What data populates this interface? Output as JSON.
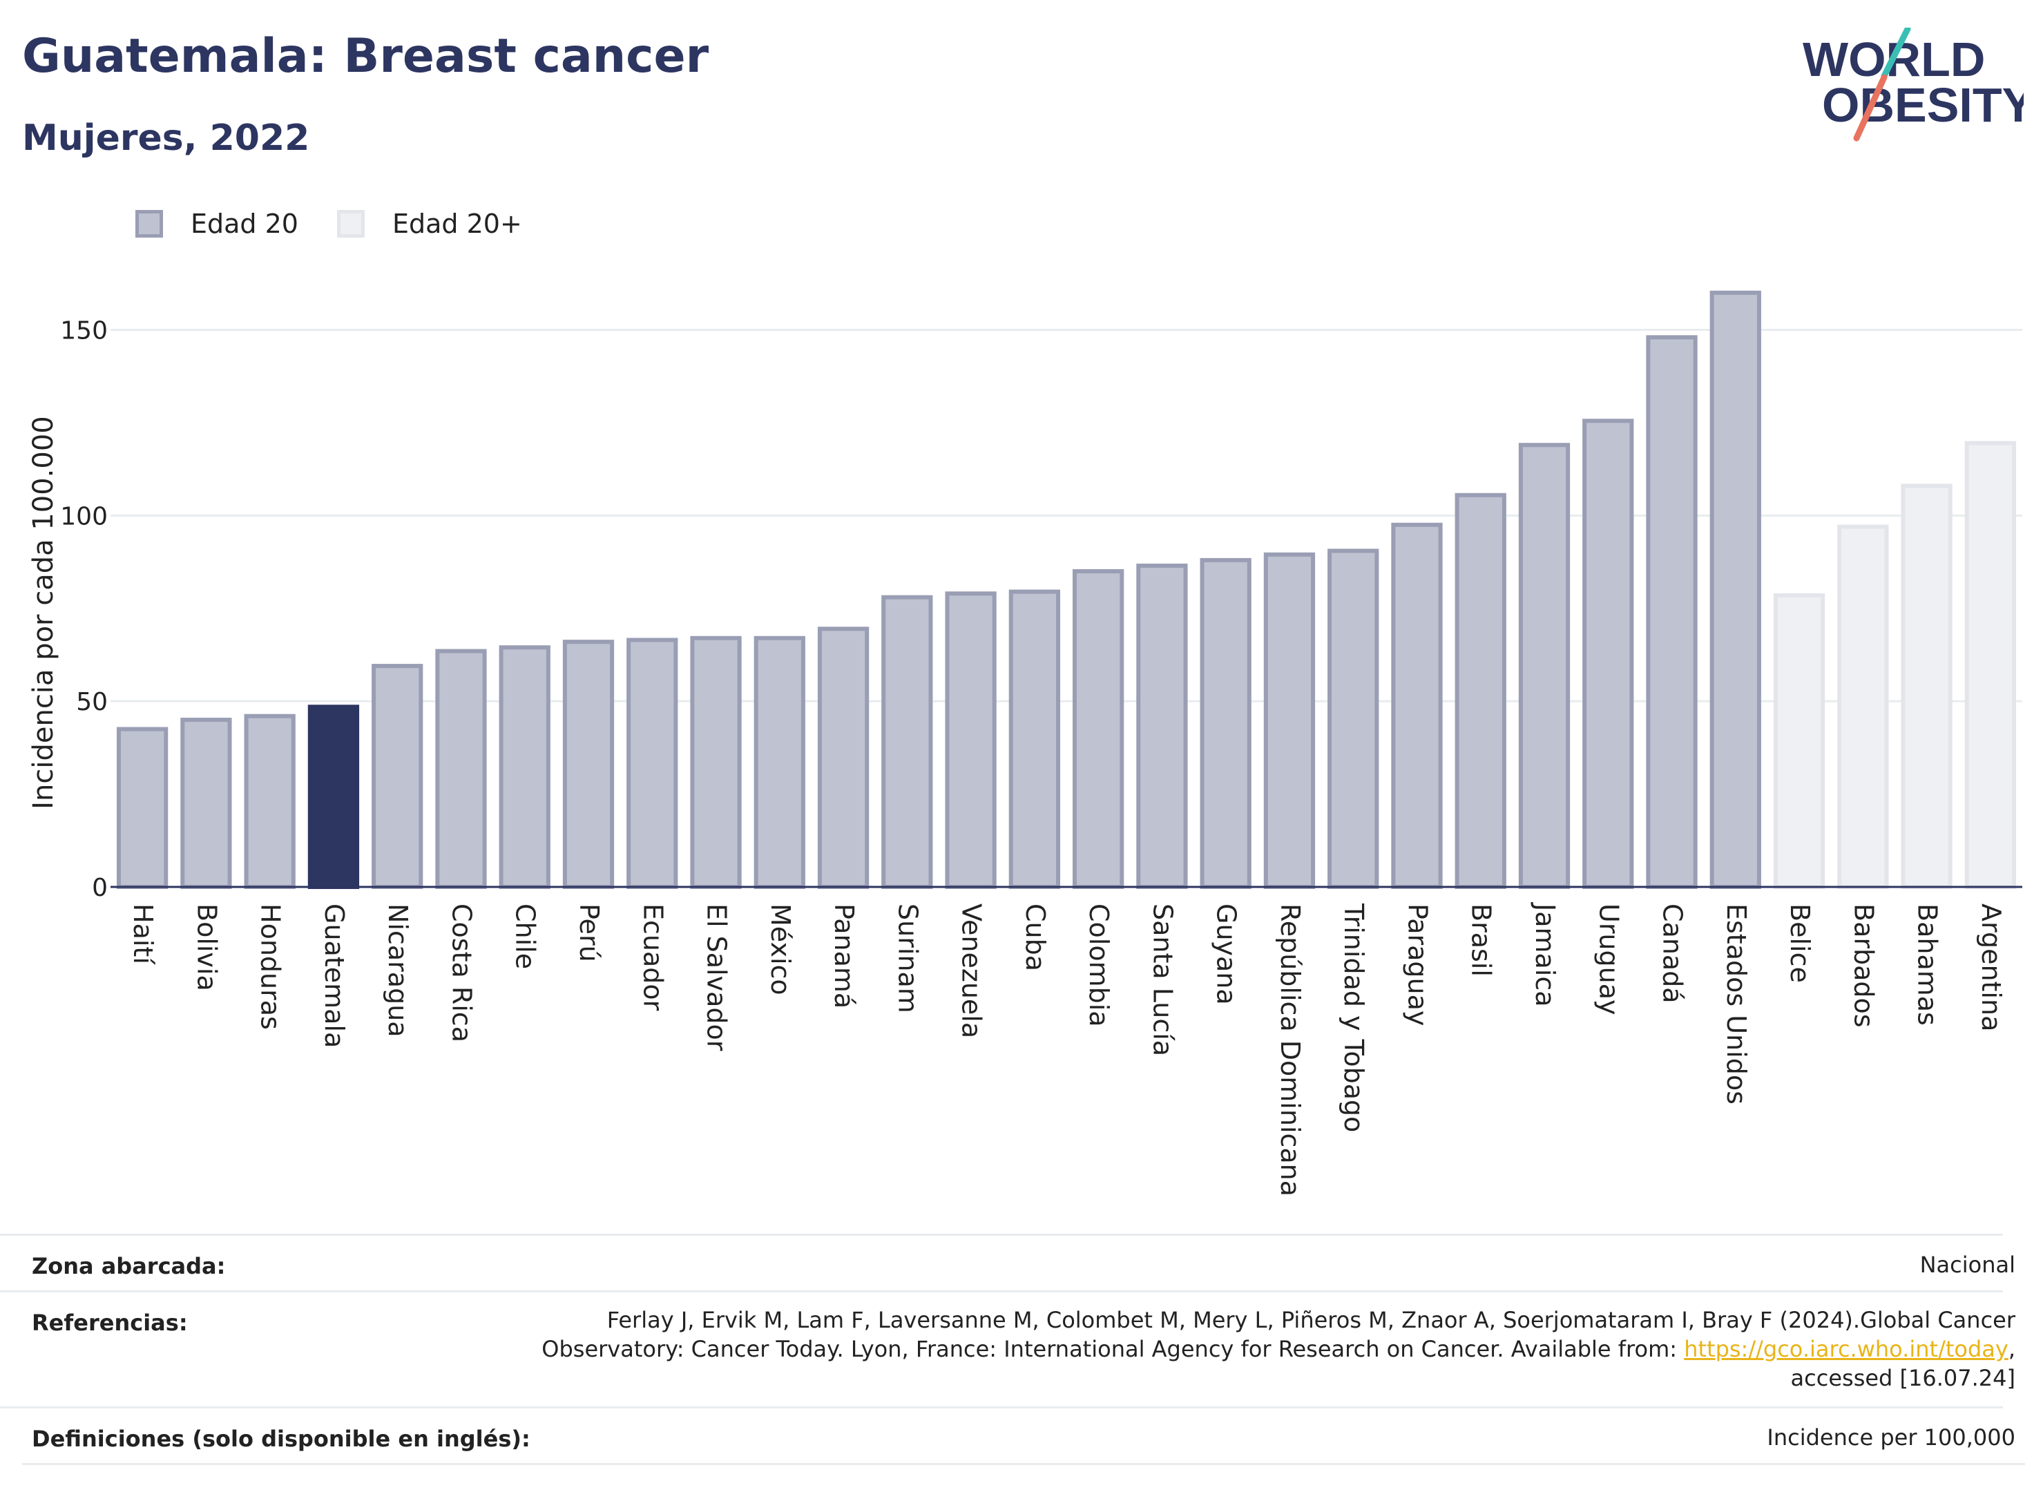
{
  "header": {
    "title": "Guatemala: Breast cancer",
    "subtitle": "Mujeres, 2022"
  },
  "logo": {
    "line1": "WORLD",
    "line2": "OBESITY"
  },
  "legend": [
    {
      "label": "Edad 20",
      "fill": "#bfc2d0",
      "stroke": "#9a9eb4"
    },
    {
      "label": "Edad 20+",
      "fill": "#eff0f3",
      "stroke": "#e4e5ea"
    }
  ],
  "chart_data": {
    "type": "bar",
    "ylabel": "Incidencia por cada 100.000",
    "ylim": [
      0,
      170
    ],
    "yticks": [
      0,
      50,
      100,
      150
    ],
    "grid": true,
    "legend_position": "top-left",
    "highlight_color": "#2d3561",
    "categories": [
      "Haití",
      "Bolivia",
      "Honduras",
      "Guatemala",
      "Nicaragua",
      "Costa Rica",
      "Chile",
      "Perú",
      "Ecuador",
      "El Salvador",
      "México",
      "Panamá",
      "Surinam",
      "Venezuela",
      "Cuba",
      "Colombia",
      "Santa Lucía",
      "Guyana",
      "República Dominicana",
      "Trinidad y Tobago",
      "Paraguay",
      "Brasil",
      "Jamaica",
      "Uruguay",
      "Canadá",
      "Estados Unidos",
      "Belice",
      "Barbados",
      "Bahamas",
      "Argentina"
    ],
    "values": [
      42.5,
      45,
      46,
      48.5,
      59.5,
      63.5,
      64.5,
      66,
      66.5,
      67,
      67,
      69.5,
      78,
      79,
      79.5,
      85,
      86.5,
      88,
      89.5,
      90.5,
      97.5,
      105.5,
      119,
      125.5,
      148,
      160,
      78.5,
      97,
      108,
      119.5
    ],
    "group": [
      "Edad 20",
      "Edad 20",
      "Edad 20",
      "Edad 20",
      "Edad 20",
      "Edad 20",
      "Edad 20",
      "Edad 20",
      "Edad 20",
      "Edad 20",
      "Edad 20",
      "Edad 20",
      "Edad 20",
      "Edad 20",
      "Edad 20",
      "Edad 20",
      "Edad 20",
      "Edad 20",
      "Edad 20",
      "Edad 20",
      "Edad 20",
      "Edad 20",
      "Edad 20",
      "Edad 20",
      "Edad 20",
      "Edad 20",
      "Edad 20+",
      "Edad 20+",
      "Edad 20+",
      "Edad 20+"
    ],
    "highlight": "Guatemala"
  },
  "meta": {
    "coverage_label": "Zona abarcada:",
    "coverage_value": "Nacional",
    "references_label": "Referencias:",
    "references_line1": "Ferlay J, Ervik M, Lam F, Laversanne M, Colombet M, Mery L, Piñeros M, Znaor A, Soerjomataram I, Bray F (2024).Global Cancer",
    "references_line2_prefix": "Observatory: Cancer Today. Lyon, France: International Agency for Research on Cancer. Available from: ",
    "references_link": "https://gco.iarc.who.int/today",
    "references_line2_suffix": ",",
    "references_line3": "accessed [16.07.24]",
    "definitions_label": "Definiciones (solo disponible en inglés):",
    "definitions_value": "Incidence per 100,000"
  }
}
